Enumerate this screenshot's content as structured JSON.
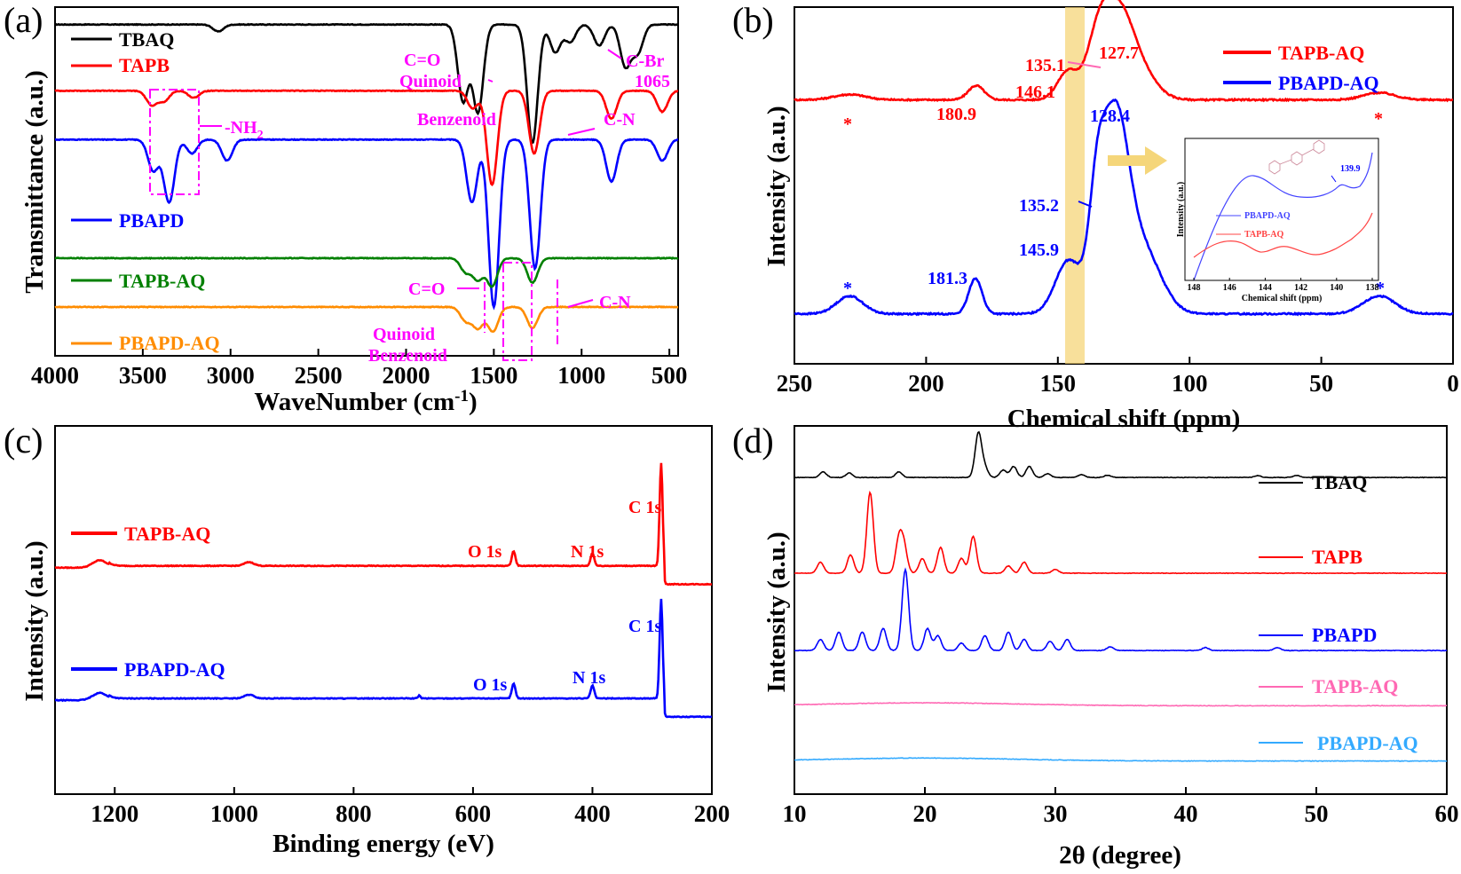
{
  "chart_data": [
    {
      "panel": "(a)",
      "type": "line",
      "xlabel": "WaveNumber (cm",
      "xlabel_sup": "-1",
      "xlabel_end": ")",
      "ylabel": "Transmittance (a.u.)",
      "xlim": [
        4000,
        450
      ],
      "xticks": [
        4000,
        3500,
        3000,
        2500,
        2000,
        1500,
        1000,
        500
      ],
      "series": [
        {
          "name": "TBAQ",
          "color": "#000000",
          "offset": 0.95,
          "peaks": [
            [
              3070,
              0.02
            ],
            [
              1675,
              0.22
            ],
            [
              1590,
              0.25
            ],
            [
              1280,
              0.34
            ],
            [
              1150,
              0.08
            ],
            [
              1065,
              0.05
            ],
            [
              900,
              0.06
            ],
            [
              750,
              0.12
            ],
            [
              680,
              0.08
            ]
          ]
        },
        {
          "name": "TAPB",
          "color": "#ff0000",
          "offset": 0.76,
          "peaks": [
            [
              3450,
              0.04
            ],
            [
              3380,
              0.03
            ],
            [
              3210,
              0.02
            ],
            [
              1620,
              0.05
            ],
            [
              1510,
              0.27
            ],
            [
              1270,
              0.18
            ],
            [
              830,
              0.08
            ],
            [
              540,
              0.06
            ]
          ]
        },
        {
          "name": "PBAPD",
          "color": "#0000ff",
          "offset": 0.62,
          "peaks": [
            [
              3440,
              0.09
            ],
            [
              3350,
              0.18
            ],
            [
              3220,
              0.04
            ],
            [
              3020,
              0.06
            ],
            [
              1625,
              0.18
            ],
            [
              1500,
              0.48
            ],
            [
              1265,
              0.37
            ],
            [
              830,
              0.12
            ],
            [
              540,
              0.06
            ]
          ]
        },
        {
          "name": "TAPB-AQ",
          "color": "#008000",
          "offset": 0.28,
          "peaks": [
            [
              1660,
              0.04
            ],
            [
              1590,
              0.06
            ],
            [
              1510,
              0.08
            ],
            [
              1280,
              0.07
            ]
          ]
        },
        {
          "name": "PBAPD-AQ",
          "color": "#ff8c00",
          "offset": 0.14,
          "peaks": [
            [
              1660,
              0.04
            ],
            [
              1590,
              0.06
            ],
            [
              1505,
              0.07
            ],
            [
              1280,
              0.06
            ]
          ]
        }
      ],
      "annotations": [
        "C=O",
        "Quinoid",
        "C-Br",
        "1065",
        "Benzenoid",
        "C-N",
        "-NH",
        "C=O",
        "C-N",
        "Quinoid",
        "Benzenoid"
      ],
      "nh2_subscript": "2"
    },
    {
      "panel": "(b)",
      "type": "line",
      "xlabel": "Chemical shift (ppm)",
      "ylabel": "Intensity (a.u.)",
      "xlim": [
        250,
        0
      ],
      "xticks": [
        250,
        200,
        150,
        100,
        50,
        0
      ],
      "series": [
        {
          "name": "TAPB-AQ",
          "color": "#ff0000",
          "offset": 0.74,
          "peaks": [
            [
              229,
              0.015,
              6
            ],
            [
              181,
              0.04,
              3
            ],
            [
              146.1,
              0.08,
              4
            ],
            [
              135.1,
              0.12,
              4
            ],
            [
              127.7,
              0.25,
              6
            ],
            [
              118,
              0.06,
              6
            ],
            [
              28,
              0.02,
              6
            ]
          ]
        },
        {
          "name": "PBAPD-AQ",
          "color": "#0000ff",
          "offset": 0.14,
          "peaks": [
            [
              229,
              0.05,
              5
            ],
            [
              181.3,
              0.1,
              2.5
            ],
            [
              145.9,
              0.15,
              5
            ],
            [
              135.2,
              0.25,
              3
            ],
            [
              128.4,
              0.52,
              5
            ],
            [
              118,
              0.18,
              7
            ],
            [
              28,
              0.05,
              6
            ]
          ]
        }
      ],
      "peak_labels": {
        "red": [
          "180.9",
          "146.1",
          "135.1",
          "127.7"
        ],
        "blue": [
          "181.3",
          "145.9",
          "135.2",
          "128.4"
        ],
        "star": "*"
      },
      "inset": {
        "xlabel": "Chemical shift (ppm)",
        "ylabel": "Intensity (a.u.)",
        "xticks": [
          148,
          146,
          144,
          142,
          140,
          138
        ],
        "legend": [
          "PBAPD-AQ",
          "TAPB-AQ"
        ],
        "label": "139.9"
      }
    },
    {
      "panel": "(c)",
      "type": "line",
      "xlabel": "Binding energy (eV)",
      "ylabel": "Intensity (a.u.)",
      "xlim": [
        1300,
        200
      ],
      "xticks": [
        1200,
        1000,
        800,
        600,
        400,
        200
      ],
      "series": [
        {
          "name": "TAPB-AQ",
          "color": "#ff0000",
          "offset": 0.62,
          "peaks": [
            [
              1225,
              0.02,
              12
            ],
            [
              975,
              0.01,
              8
            ],
            [
              532,
              0.04,
              3
            ],
            [
              400,
              0.035,
              3
            ],
            [
              285,
              0.28,
              2.5
            ]
          ]
        },
        {
          "name": "PBAPD-AQ",
          "color": "#0000ff",
          "offset": 0.26,
          "peaks": [
            [
              1225,
              0.02,
              12
            ],
            [
              975,
              0.01,
              8
            ],
            [
              690,
              0.008,
              2
            ],
            [
              532,
              0.04,
              3
            ],
            [
              400,
              0.035,
              3
            ],
            [
              285,
              0.27,
              2.5
            ]
          ]
        }
      ],
      "peak_labels": {
        "o1s": "O 1s",
        "n1s": "N 1s",
        "c1s": "C 1s"
      }
    },
    {
      "panel": "(d)",
      "type": "line",
      "xlabel": "2θ (degree)",
      "ylabel": "Intensity (a.u.)",
      "xlim": [
        10,
        60
      ],
      "xticks": [
        10,
        20,
        30,
        40,
        50,
        60
      ],
      "series": [
        {
          "name": "TBAQ",
          "color": "#000000",
          "offset": 0.86,
          "peaks": [
            [
              12.2,
              0.015
            ],
            [
              14.2,
              0.012
            ],
            [
              18,
              0.015
            ],
            [
              24.1,
              0.12
            ],
            [
              24.6,
              0.025
            ],
            [
              26,
              0.02
            ],
            [
              26.8,
              0.03
            ],
            [
              28,
              0.03
            ],
            [
              29.4,
              0.01
            ],
            [
              32,
              0.008
            ],
            [
              34,
              0.006
            ],
            [
              45.5,
              0.005
            ],
            [
              48.5,
              0.006
            ]
          ]
        },
        {
          "name": "TAPB",
          "color": "#ff0000",
          "offset": 0.6,
          "peaks": [
            [
              12,
              0.03
            ],
            [
              14.3,
              0.05
            ],
            [
              15.8,
              0.22
            ],
            [
              18,
              0.09
            ],
            [
              18.4,
              0.07
            ],
            [
              19.8,
              0.04
            ],
            [
              21.2,
              0.07
            ],
            [
              22.8,
              0.04
            ],
            [
              23.7,
              0.1
            ],
            [
              26.4,
              0.02
            ],
            [
              27.6,
              0.03
            ],
            [
              30,
              0.01
            ]
          ]
        },
        {
          "name": "PBAPD",
          "color": "#0000ff",
          "offset": 0.39,
          "peaks": [
            [
              12,
              0.03
            ],
            [
              13.4,
              0.05
            ],
            [
              15.2,
              0.05
            ],
            [
              16.8,
              0.06
            ],
            [
              18.5,
              0.22
            ],
            [
              20.2,
              0.06
            ],
            [
              21,
              0.04
            ],
            [
              22.8,
              0.02
            ],
            [
              24.6,
              0.04
            ],
            [
              26.4,
              0.05
            ],
            [
              27.6,
              0.03
            ],
            [
              29.6,
              0.025
            ],
            [
              30.9,
              0.03
            ],
            [
              34.2,
              0.01
            ],
            [
              41.5,
              0.008
            ],
            [
              47,
              0.008
            ]
          ]
        },
        {
          "name": "TAPB-AQ",
          "color": "#ff69b4",
          "offset": 0.24,
          "peaks": []
        },
        {
          "name": "PBAPD-AQ",
          "color": "#33aaff",
          "offset": 0.09,
          "peaks": []
        }
      ]
    }
  ]
}
